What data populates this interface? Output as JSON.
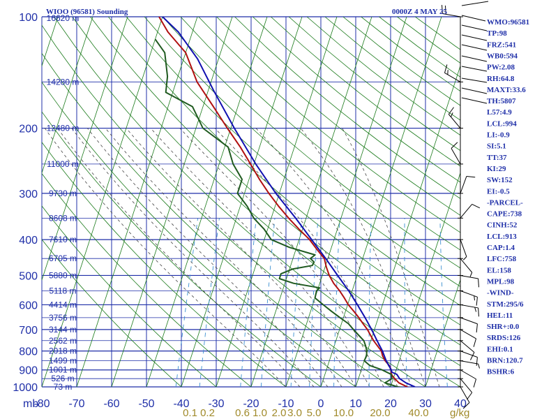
{
  "header": {
    "station": "WIOO (96581) Sounding",
    "time": "0000Z  4 MAY 25"
  },
  "colors": {
    "axis": "#1f2fa8",
    "isotherm": "#1a7a1a",
    "dry_adiabat": "#1a7a1a",
    "moist_adiabat": "#444444",
    "mixing_ratio": "#3a8fd0",
    "temperature": "#b01010",
    "dewpoint": "#1f5a1f",
    "parcel": "#1010b0",
    "wind": "#000000",
    "mixing_ratio_labels": "#a08a2a"
  },
  "chart_data": {
    "type": "line",
    "title": "WIOO (96581) Sounding",
    "xlabel": "",
    "ylabel": "mb",
    "x_unit_label": "g/kg",
    "xlim": [
      -80,
      40
    ],
    "ylim_pressure": [
      100,
      1000
    ],
    "y_scale": "log",
    "grid": true,
    "pressure_ticks": [
      "100",
      "200",
      "300",
      "400",
      "500",
      "600",
      "700",
      "800",
      "900",
      "1000"
    ],
    "temperature_ticks": [
      "-80",
      "-70",
      "-60",
      "-50",
      "-40",
      "-30",
      "-20",
      "-10",
      "0",
      "10",
      "20",
      "30",
      "40"
    ],
    "mixing_ratio_ticks": [
      {
        "label": "0.1",
        "t": -37.5
      },
      {
        "label": "0.2",
        "t": -32.5
      },
      {
        "label": "0.6",
        "t": -22.5
      },
      {
        "label": "1.0",
        "t": -17.5
      },
      {
        "label": "2.0",
        "t": -12.0
      },
      {
        "label": "3.0",
        "t": -7.5
      },
      {
        "label": "5.0",
        "t": -2.0
      },
      {
        "label": "10.0",
        "t": 6.5
      },
      {
        "label": "20.0",
        "t": 17.0
      },
      {
        "label": "40.0",
        "t": 28.0
      }
    ],
    "height_labels": [
      {
        "p": 100,
        "label": "16620 m"
      },
      {
        "p": 150,
        "label": "14280 m"
      },
      {
        "p": 200,
        "label": "12480 m"
      },
      {
        "p": 250,
        "label": "11000 m"
      },
      {
        "p": 300,
        "label": "9730 m"
      },
      {
        "p": 350,
        "label": "8608 m"
      },
      {
        "p": 400,
        "label": "7610 m"
      },
      {
        "p": 450,
        "label": "6705 m"
      },
      {
        "p": 500,
        "label": "5880 m"
      },
      {
        "p": 550,
        "label": "5118 m"
      },
      {
        "p": 600,
        "label": "4414 m"
      },
      {
        "p": 650,
        "label": "3756 m"
      },
      {
        "p": 700,
        "label": "3144 m"
      },
      {
        "p": 750,
        "label": "2562 m"
      },
      {
        "p": 800,
        "label": "2018 m"
      },
      {
        "p": 850,
        "label": "1499 m"
      },
      {
        "p": 900,
        "label": "1001 m"
      },
      {
        "p": 950,
        "label": "526 m"
      },
      {
        "p": 1000,
        "label": "73 m"
      }
    ],
    "series": [
      {
        "name": "Temperature",
        "points": [
          [
            1004,
            25.0
          ],
          [
            1000,
            24.8
          ],
          [
            975,
            22.0
          ],
          [
            950,
            20.4
          ],
          [
            925,
            19.0
          ],
          [
            900,
            18.6
          ],
          [
            875,
            17.6
          ],
          [
            850,
            16.0
          ],
          [
            825,
            14.8
          ],
          [
            800,
            14.0
          ],
          [
            775,
            12.4
          ],
          [
            750,
            10.8
          ],
          [
            725,
            9.4
          ],
          [
            700,
            8.0
          ],
          [
            675,
            6.2
          ],
          [
            650,
            4.4
          ],
          [
            625,
            2.4
          ],
          [
            600,
            0.2
          ],
          [
            575,
            -1.6
          ],
          [
            550,
            -3.6
          ],
          [
            525,
            -6.0
          ],
          [
            500,
            -8.0
          ],
          [
            475,
            -9.6
          ],
          [
            450,
            -11.0
          ],
          [
            425,
            -14.0
          ],
          [
            400,
            -17.0
          ],
          [
            375,
            -21.0
          ],
          [
            350,
            -25.0
          ],
          [
            325,
            -29.0
          ],
          [
            300,
            -33.0
          ],
          [
            275,
            -37.0
          ],
          [
            250,
            -41.0
          ],
          [
            225,
            -45.5
          ],
          [
            200,
            -51.0
          ],
          [
            175,
            -57.0
          ],
          [
            150,
            -64.0
          ],
          [
            125,
            -70.0
          ],
          [
            110,
            -77.0
          ],
          [
            100,
            -81.0
          ]
        ]
      },
      {
        "name": "Dewpoint",
        "points": [
          [
            1004,
            23.6
          ],
          [
            1000,
            22.0
          ],
          [
            975,
            18.0
          ],
          [
            950,
            19.6
          ],
          [
            925,
            19.0
          ],
          [
            900,
            16.0
          ],
          [
            875,
            12.0
          ],
          [
            850,
            10.0
          ],
          [
            825,
            10.2
          ],
          [
            800,
            9.8
          ],
          [
            775,
            9.0
          ],
          [
            750,
            8.0
          ],
          [
            725,
            6.0
          ],
          [
            700,
            4.0
          ],
          [
            675,
            2.0
          ],
          [
            650,
            -1.0
          ],
          [
            625,
            -4.0
          ],
          [
            600,
            -7.0
          ],
          [
            575,
            -10.0
          ],
          [
            550,
            -10.2
          ],
          [
            540,
            -9.6
          ],
          [
            525,
            -17.5
          ],
          [
            510,
            -22.0
          ],
          [
            495,
            -22.0
          ],
          [
            480,
            -19.0
          ],
          [
            470,
            -13.8
          ],
          [
            460,
            -13.6
          ],
          [
            450,
            -15.0
          ],
          [
            440,
            -14.0
          ],
          [
            420,
            -22.0
          ],
          [
            400,
            -28.0
          ],
          [
            375,
            -31.0
          ],
          [
            350,
            -35.0
          ],
          [
            325,
            -38.0
          ],
          [
            300,
            -42.0
          ],
          [
            275,
            -42.0
          ],
          [
            250,
            -46.0
          ],
          [
            225,
            -49.0
          ],
          [
            200,
            -58.0
          ],
          [
            175,
            -63.0
          ],
          [
            160,
            -72.0
          ],
          [
            145,
            -73.0
          ],
          [
            125,
            -76.0
          ],
          [
            115,
            -80.0
          ]
        ]
      },
      {
        "name": "Parcel",
        "points": [
          [
            1000,
            27.0
          ],
          [
            975,
            24.0
          ],
          [
            950,
            21.8
          ],
          [
            925,
            20.6
          ],
          [
            913,
            19.0
          ],
          [
            900,
            18.6
          ],
          [
            850,
            16.3
          ],
          [
            800,
            14.3
          ],
          [
            750,
            11.8
          ],
          [
            700,
            9.2
          ],
          [
            650,
            6.2
          ],
          [
            600,
            2.8
          ],
          [
            550,
            -1.0
          ],
          [
            500,
            -5.6
          ],
          [
            450,
            -10.6
          ],
          [
            400,
            -16.4
          ],
          [
            350,
            -23.0
          ],
          [
            300,
            -31.0
          ],
          [
            250,
            -39.5
          ],
          [
            200,
            -49.0
          ],
          [
            158,
            -58.5
          ],
          [
            130,
            -66.0
          ],
          [
            110,
            -74.0
          ],
          [
            100,
            -80.0
          ]
        ]
      }
    ],
    "wind_barbs": [
      {
        "p": 1000,
        "dir": 150,
        "spd": 10
      },
      {
        "p": 950,
        "dir": 140,
        "spd": 10
      },
      {
        "p": 900,
        "dir": 120,
        "spd": 10
      },
      {
        "p": 850,
        "dir": 100,
        "spd": 5
      },
      {
        "p": 800,
        "dir": 110,
        "spd": 10
      },
      {
        "p": 750,
        "dir": 130,
        "spd": 10
      },
      {
        "p": 700,
        "dir": 120,
        "spd": 10
      },
      {
        "p": 650,
        "dir": 110,
        "spd": 10
      },
      {
        "p": 600,
        "dir": 100,
        "spd": 15
      },
      {
        "p": 550,
        "dir": 110,
        "spd": 15
      },
      {
        "p": 500,
        "dir": 100,
        "spd": 10
      },
      {
        "p": 450,
        "dir": 140,
        "spd": 5
      },
      {
        "p": 400,
        "dir": 160,
        "spd": 5
      },
      {
        "p": 350,
        "dir": 40,
        "spd": 10
      },
      {
        "p": 300,
        "dir": 20,
        "spd": 10
      },
      {
        "p": 250,
        "dir": 330,
        "spd": 10
      },
      {
        "p": 200,
        "dir": 320,
        "spd": 15
      },
      {
        "p": 150,
        "dir": 300,
        "spd": 15
      },
      {
        "p": 100,
        "dir": 280,
        "spd": 20
      }
    ]
  },
  "indices": [
    "WMO:96581",
    "TP:98",
    "FRZ:541",
    "WB0:594",
    "PW:2.08",
    "RH:64.8",
    "MAXT:33.6",
    "TH:5807",
    "L57:4.9",
    "LCL:994",
    "LI:-0.9",
    "SI:5.1",
    "TT:37",
    "KI:29",
    "SW:152",
    "EI:-0.5",
    "-PARCEL-",
    "CAPE:738",
    "CINH:52",
    "LCL:913",
    "CAP:1.4",
    "LFC:758",
    "EL:158",
    "MPL:98",
    "-WIND-",
    "STM:295/6",
    "HEL:11",
    "SHR+:0.0",
    "SRDS:126",
    "EHI:0.1",
    "BRN:120.7",
    "BSHR:6"
  ]
}
